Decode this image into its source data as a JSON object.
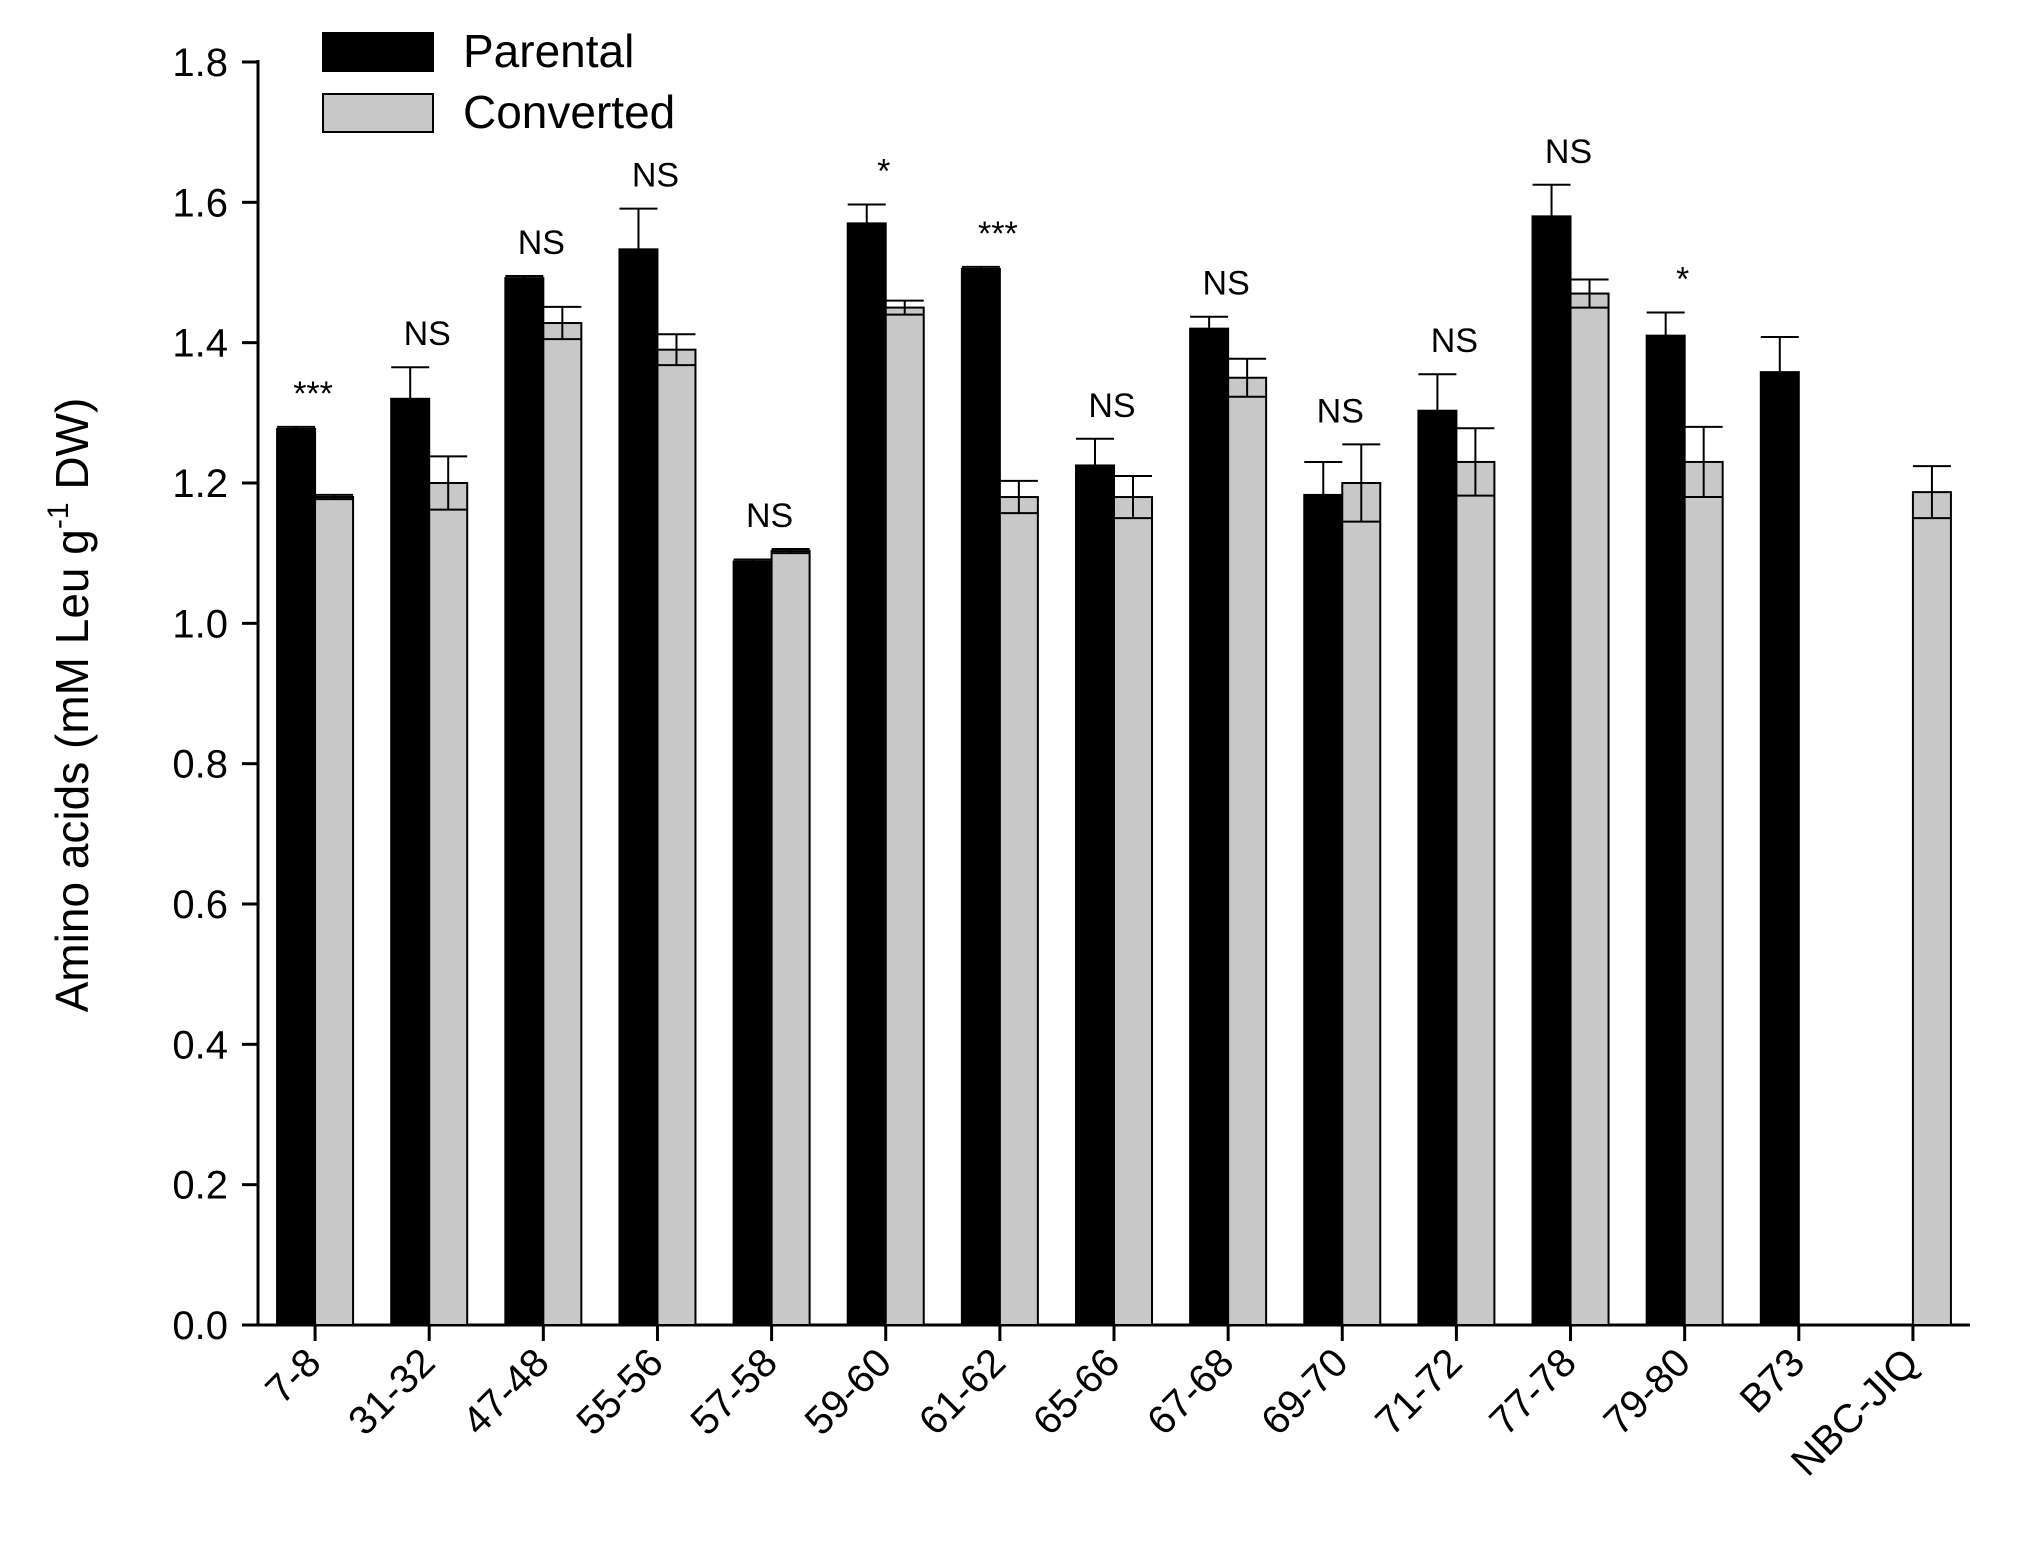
{
  "chart_data": {
    "type": "bar",
    "ylabel": {
      "main": "Amino acids (mM Leu g",
      "sup": "-1",
      "tail": " DW)"
    },
    "xlabel": "",
    "ylim": [
      0,
      1.8
    ],
    "yticks": [
      "0.0",
      "0.2",
      "0.4",
      "0.6",
      "0.8",
      "1.0",
      "1.2",
      "1.4",
      "1.6",
      "1.8"
    ],
    "grid": false,
    "legend": "top-left",
    "categories": [
      "7-8",
      "31-32",
      "47-48",
      "55-56",
      "57-58",
      "59-60",
      "61-62",
      "65-66",
      "67-68",
      "69-70",
      "71-72",
      "77-78",
      "79-80",
      "B73",
      "NBC-JIQ"
    ],
    "series": [
      {
        "name": "Parental",
        "color": "#000000",
        "values": [
          1.277,
          1.32,
          1.492,
          1.533,
          1.088,
          1.57,
          1.505,
          1.225,
          1.42,
          1.183,
          1.303,
          1.58,
          1.41,
          1.358,
          null
        ],
        "errors": [
          0.003,
          0.045,
          0.003,
          0.058,
          0.003,
          0.027,
          0.003,
          0.038,
          0.017,
          0.047,
          0.052,
          0.045,
          0.033,
          0.05,
          null
        ]
      },
      {
        "name": "Converted",
        "color": "#c8c8c8",
        "values": [
          1.18,
          1.2,
          1.428,
          1.39,
          1.103,
          1.45,
          1.18,
          1.18,
          1.35,
          1.2,
          1.23,
          1.47,
          1.23,
          null,
          1.187
        ],
        "errors": [
          0.003,
          0.038,
          0.023,
          0.022,
          0.003,
          0.01,
          0.023,
          0.03,
          0.027,
          0.055,
          0.048,
          0.02,
          0.05,
          null,
          0.037
        ]
      }
    ],
    "annotations": [
      "***",
      "NS",
      "NS",
      "NS",
      "NS",
      "*",
      "***",
      "NS",
      "NS",
      "NS",
      "NS",
      "NS",
      "*",
      "",
      ""
    ]
  }
}
